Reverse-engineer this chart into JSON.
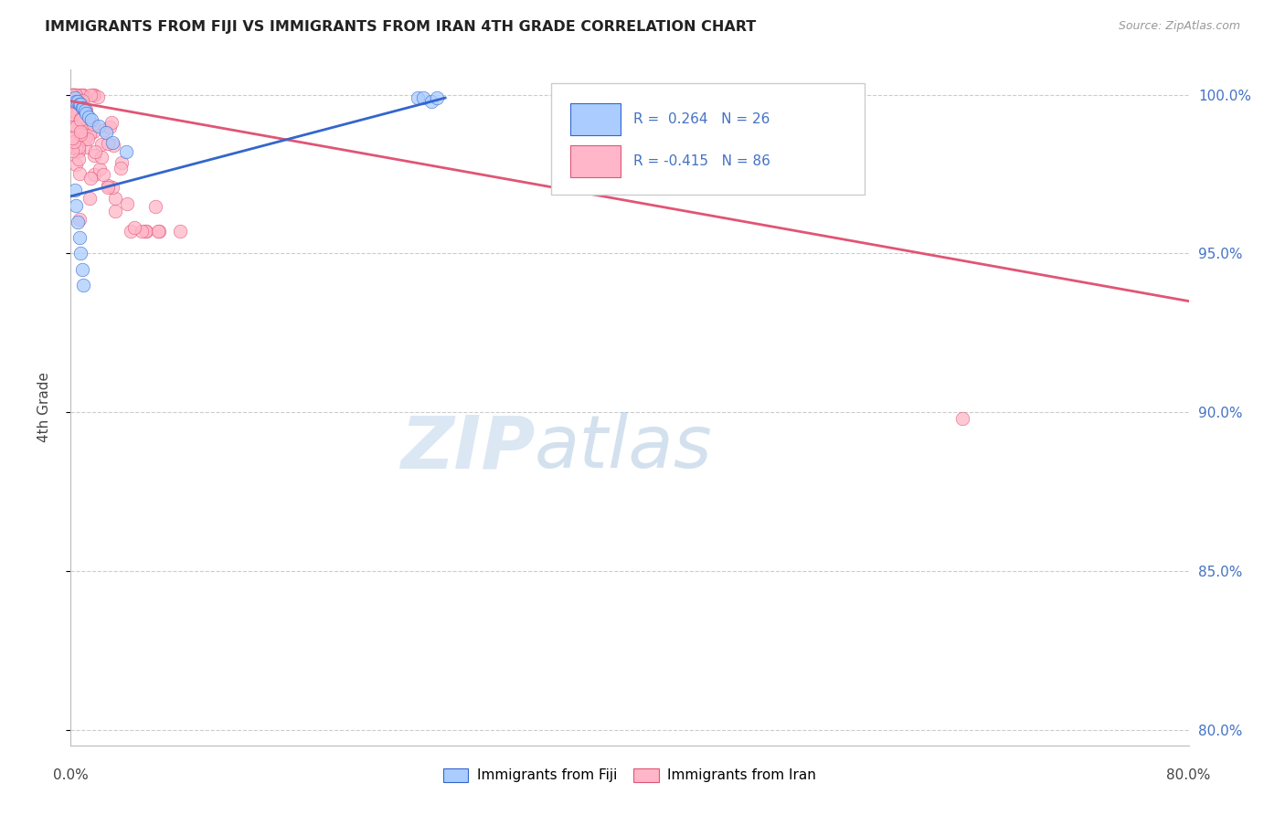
{
  "title": "IMMIGRANTS FROM FIJI VS IMMIGRANTS FROM IRAN 4TH GRADE CORRELATION CHART",
  "source": "Source: ZipAtlas.com",
  "ylabel": "4th Grade",
  "xlim": [
    0.0,
    0.8
  ],
  "ylim": [
    0.795,
    1.008
  ],
  "yticks": [
    0.8,
    0.85,
    0.9,
    0.95,
    1.0
  ],
  "ytick_labels": [
    "80.0%",
    "85.0%",
    "90.0%",
    "95.0%",
    "100.0%"
  ],
  "xticks": [
    0.0,
    0.1,
    0.2,
    0.3,
    0.4,
    0.5,
    0.6,
    0.7,
    0.8
  ],
  "fiji_R": 0.264,
  "fiji_N": 26,
  "iran_R": -0.415,
  "iran_N": 86,
  "fiji_color": "#aaccff",
  "iran_color": "#ffb6c8",
  "fiji_line_color": "#3366cc",
  "iran_line_color": "#e05575",
  "background_color": "#ffffff",
  "grid_color": "#cccccc"
}
